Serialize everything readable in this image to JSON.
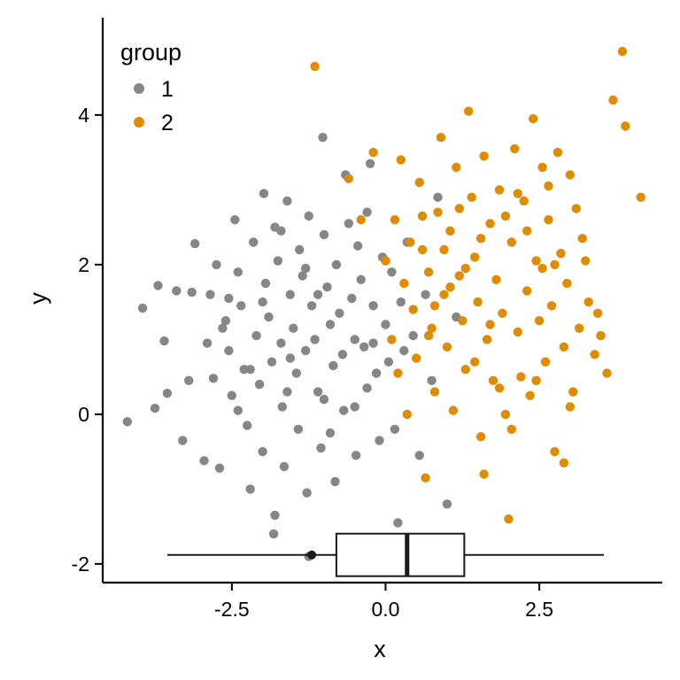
{
  "chart_data": {
    "type": "scatter",
    "xlabel": "x",
    "ylabel": "y",
    "xlim": [
      -4.6,
      4.5
    ],
    "ylim": [
      -2.25,
      5.3
    ],
    "x_ticks": [
      -2.5,
      0.0,
      2.5
    ],
    "x_tick_labels": [
      "-2.5",
      "0.0",
      "2.5"
    ],
    "y_ticks": [
      -2,
      0,
      2,
      4
    ],
    "y_tick_labels": [
      "-2",
      "0",
      "2",
      "4"
    ],
    "grid": false,
    "legend": {
      "title": "group",
      "placement": "top-left",
      "entries": [
        {
          "label": "1",
          "color": "#868686"
        },
        {
          "label": "2",
          "color": "#E08B00"
        }
      ]
    },
    "series": [
      {
        "name": "1",
        "color": "#868686",
        "points": [
          [
            -4.2,
            -0.1
          ],
          [
            -3.95,
            1.42
          ],
          [
            -3.7,
            1.72
          ],
          [
            -3.6,
            0.98
          ],
          [
            -3.75,
            0.08
          ],
          [
            -3.55,
            0.28
          ],
          [
            -3.4,
            1.65
          ],
          [
            -3.3,
            -0.35
          ],
          [
            -3.1,
            2.28
          ],
          [
            -3.15,
            1.63
          ],
          [
            -2.85,
            1.6
          ],
          [
            -2.9,
            0.95
          ],
          [
            -2.8,
            0.48
          ],
          [
            -2.95,
            -0.62
          ],
          [
            -2.7,
            -0.72
          ],
          [
            -2.75,
            2.0
          ],
          [
            -2.6,
            1.25
          ],
          [
            -2.55,
            0.85
          ],
          [
            -2.5,
            0.25
          ],
          [
            -2.45,
            2.6
          ],
          [
            -2.4,
            1.9
          ],
          [
            -2.35,
            1.45
          ],
          [
            -2.3,
            0.6
          ],
          [
            -2.25,
            -0.15
          ],
          [
            -2.2,
            -1.0
          ],
          [
            -2.15,
            2.3
          ],
          [
            -2.1,
            1.05
          ],
          [
            -2.05,
            0.4
          ],
          [
            -2.0,
            -0.5
          ],
          [
            -1.98,
            2.95
          ],
          [
            -1.95,
            1.75
          ],
          [
            -1.9,
            1.3
          ],
          [
            -1.85,
            0.7
          ],
          [
            -1.82,
            -1.6
          ],
          [
            -1.8,
            2.5
          ],
          [
            -1.75,
            2.05
          ],
          [
            -1.7,
            0.95
          ],
          [
            -1.68,
            0.1
          ],
          [
            -1.65,
            -0.7
          ],
          [
            -1.6,
            2.85
          ],
          [
            -1.55,
            1.6
          ],
          [
            -1.5,
            1.15
          ],
          [
            -1.45,
            0.55
          ],
          [
            -1.42,
            -0.2
          ],
          [
            -1.4,
            2.2
          ],
          [
            -1.35,
            1.85
          ],
          [
            -1.3,
            0.85
          ],
          [
            -1.28,
            -1.05
          ],
          [
            -1.25,
            2.65
          ],
          [
            -1.2,
            1.45
          ],
          [
            -1.15,
            1.0
          ],
          [
            -1.1,
            0.3
          ],
          [
            -1.05,
            -0.45
          ],
          [
            -1.02,
            3.7
          ],
          [
            -1.0,
            2.4
          ],
          [
            -0.95,
            1.7
          ],
          [
            -0.9,
            1.2
          ],
          [
            -0.85,
            0.65
          ],
          [
            -0.82,
            -0.9
          ],
          [
            -0.8,
            2.0
          ],
          [
            -0.75,
            1.35
          ],
          [
            -0.7,
            0.8
          ],
          [
            -0.68,
            0.05
          ],
          [
            -0.65,
            3.2
          ],
          [
            -0.6,
            2.55
          ],
          [
            -0.55,
            1.55
          ],
          [
            -0.5,
            1.0
          ],
          [
            -0.48,
            -0.55
          ],
          [
            -0.45,
            2.25
          ],
          [
            -0.4,
            1.8
          ],
          [
            -0.35,
            0.9
          ],
          [
            -0.3,
            0.35
          ],
          [
            -0.25,
            3.35
          ],
          [
            -0.2,
            1.45
          ],
          [
            -0.15,
            0.55
          ],
          [
            -0.1,
            -0.35
          ],
          [
            -0.05,
            2.1
          ],
          [
            0.0,
            1.2
          ],
          [
            0.05,
            0.7
          ],
          [
            0.1,
            1.9
          ],
          [
            0.15,
            -0.2
          ],
          [
            0.2,
            -1.45
          ],
          [
            0.25,
            1.5
          ],
          [
            0.3,
            0.85
          ],
          [
            0.35,
            2.3
          ],
          [
            0.45,
            1.05
          ],
          [
            0.55,
            -0.55
          ],
          [
            0.65,
            1.6
          ],
          [
            0.75,
            0.45
          ],
          [
            0.85,
            2.9
          ],
          [
            1.0,
            -1.2
          ],
          [
            1.15,
            1.3
          ],
          [
            -1.8,
            -1.35
          ],
          [
            -1.25,
            -1.9
          ],
          [
            -2.65,
            1.15
          ],
          [
            -2.2,
            0.6
          ],
          [
            -1.55,
            0.75
          ],
          [
            -1.0,
            0.2
          ],
          [
            -0.5,
            0.1
          ],
          [
            -0.3,
            2.7
          ],
          [
            -1.6,
            0.3
          ],
          [
            -1.3,
            1.95
          ],
          [
            -2.0,
            1.5
          ],
          [
            -2.4,
            0.05
          ],
          [
            -1.7,
            2.45
          ],
          [
            -0.9,
            -0.25
          ],
          [
            -0.2,
            0.95
          ],
          [
            -1.1,
            1.6
          ],
          [
            -2.55,
            1.55
          ],
          [
            -3.2,
            0.45
          ]
        ]
      },
      {
        "name": "2",
        "color": "#E08B00",
        "points": [
          [
            -1.15,
            4.65
          ],
          [
            -0.6,
            3.15
          ],
          [
            -0.4,
            2.6
          ],
          [
            -0.2,
            3.5
          ],
          [
            0.0,
            2.05
          ],
          [
            0.1,
            1.0
          ],
          [
            0.15,
            2.6
          ],
          [
            0.2,
            0.55
          ],
          [
            0.25,
            3.4
          ],
          [
            0.3,
            1.75
          ],
          [
            0.35,
            0.0
          ],
          [
            0.4,
            2.3
          ],
          [
            0.45,
            1.4
          ],
          [
            0.5,
            0.75
          ],
          [
            0.55,
            3.1
          ],
          [
            0.6,
            2.2
          ],
          [
            0.65,
            -0.85
          ],
          [
            0.7,
            1.9
          ],
          [
            0.75,
            1.15
          ],
          [
            0.8,
            0.3
          ],
          [
            0.85,
            2.7
          ],
          [
            0.9,
            3.7
          ],
          [
            0.95,
            1.6
          ],
          [
            1.0,
            0.9
          ],
          [
            1.05,
            2.45
          ],
          [
            1.1,
            0.05
          ],
          [
            1.15,
            3.3
          ],
          [
            1.2,
            1.85
          ],
          [
            1.25,
            1.25
          ],
          [
            1.3,
            0.6
          ],
          [
            1.35,
            4.05
          ],
          [
            1.4,
            2.9
          ],
          [
            1.45,
            2.1
          ],
          [
            1.5,
            1.5
          ],
          [
            1.55,
            -0.3
          ],
          [
            1.6,
            3.45
          ],
          [
            1.65,
            1.0
          ],
          [
            1.7,
            2.55
          ],
          [
            1.75,
            0.45
          ],
          [
            1.8,
            1.8
          ],
          [
            1.85,
            3.0
          ],
          [
            1.9,
            1.35
          ],
          [
            1.95,
            0.0
          ],
          [
            2.0,
            -1.4
          ],
          [
            2.05,
            2.3
          ],
          [
            2.1,
            3.55
          ],
          [
            2.15,
            1.1
          ],
          [
            2.2,
            0.5
          ],
          [
            2.25,
            2.85
          ],
          [
            2.3,
            1.65
          ],
          [
            2.35,
            0.25
          ],
          [
            2.4,
            3.95
          ],
          [
            2.45,
            2.05
          ],
          [
            2.5,
            1.25
          ],
          [
            2.55,
            3.3
          ],
          [
            2.6,
            0.7
          ],
          [
            2.65,
            2.6
          ],
          [
            2.7,
            1.45
          ],
          [
            2.75,
            -0.5
          ],
          [
            2.8,
            3.5
          ],
          [
            2.85,
            2.15
          ],
          [
            2.9,
            0.9
          ],
          [
            2.95,
            1.75
          ],
          [
            3.0,
            3.2
          ],
          [
            3.05,
            0.3
          ],
          [
            3.1,
            2.75
          ],
          [
            3.15,
            1.15
          ],
          [
            3.2,
            2.35
          ],
          [
            3.3,
            1.5
          ],
          [
            3.4,
            0.8
          ],
          [
            3.5,
            1.05
          ],
          [
            3.6,
            0.55
          ],
          [
            3.7,
            4.2
          ],
          [
            3.85,
            4.85
          ],
          [
            3.9,
            3.85
          ],
          [
            4.15,
            2.9
          ],
          [
            2.9,
            -0.65
          ],
          [
            3.0,
            0.1
          ],
          [
            1.6,
            -0.8
          ],
          [
            2.05,
            -0.2
          ],
          [
            1.2,
            2.75
          ],
          [
            1.7,
            1.2
          ],
          [
            2.3,
            2.45
          ],
          [
            0.8,
            1.45
          ],
          [
            1.95,
            2.65
          ],
          [
            2.55,
            1.95
          ],
          [
            1.45,
            0.7
          ],
          [
            2.75,
            2.0
          ],
          [
            1.05,
            1.7
          ],
          [
            3.25,
            2.05
          ],
          [
            0.6,
            2.65
          ],
          [
            1.85,
            0.35
          ],
          [
            2.15,
            2.95
          ],
          [
            1.3,
            1.95
          ],
          [
            0.95,
            2.2
          ],
          [
            2.45,
            0.45
          ],
          [
            1.55,
            2.35
          ],
          [
            2.65,
            3.05
          ],
          [
            0.7,
            1.05
          ],
          [
            3.45,
            1.35
          ]
        ]
      }
    ],
    "marginal_boxplot": {
      "axis": "x",
      "y_position": -1.88,
      "min": -3.55,
      "q1": -0.8,
      "median": 0.35,
      "q3": 1.28,
      "max": 3.55,
      "outliers": [
        [
          -1.2,
          -1.88
        ]
      ]
    }
  }
}
